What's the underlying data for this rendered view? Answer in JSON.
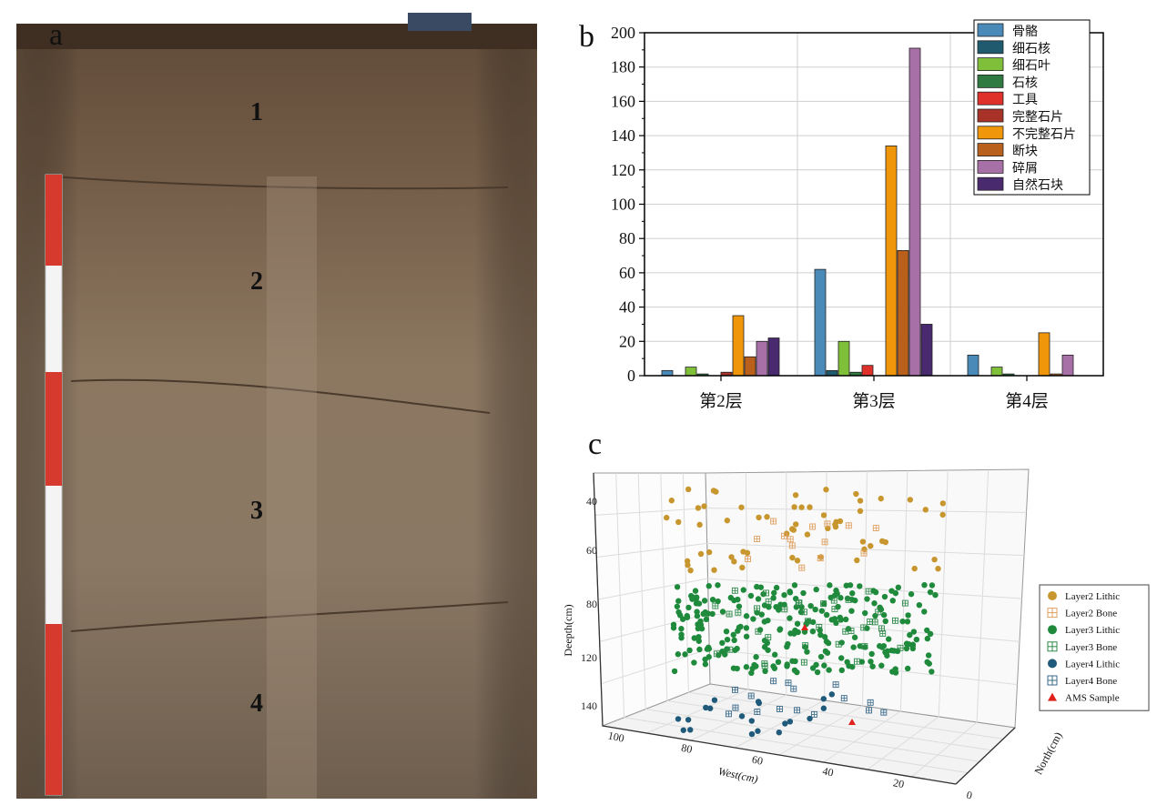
{
  "panels": {
    "a": "a",
    "b": "b",
    "c": "c"
  },
  "photo": {
    "layer_labels": [
      "1",
      "2",
      "3",
      "4"
    ],
    "colors": {
      "soil_top": "#6b5542",
      "soil_mid": "#8a7560",
      "soil_bottom": "#7c6a58",
      "pole_red": "#d63a2f",
      "pole_white": "#f4f4f4"
    }
  },
  "chart_data": [
    {
      "type": "bar",
      "categories": [
        "第2层",
        "第3层",
        "第4层"
      ],
      "ylim": [
        0,
        200
      ],
      "yticks": [
        0,
        20,
        40,
        60,
        80,
        100,
        120,
        140,
        160,
        180,
        200
      ],
      "legend_position": "top-right",
      "grid": true,
      "series": [
        {
          "name": "骨骼",
          "color": "#4a8ab8",
          "values": [
            3,
            62,
            12
          ]
        },
        {
          "name": "细石核",
          "color": "#1f5a6e",
          "values": [
            0,
            3,
            0
          ]
        },
        {
          "name": "细石叶",
          "color": "#7fbf3a",
          "values": [
            5,
            20,
            5
          ]
        },
        {
          "name": "石核",
          "color": "#2e7a40",
          "values": [
            1,
            2,
            1
          ]
        },
        {
          "name": "工具",
          "color": "#e0302a",
          "values": [
            0,
            6,
            0
          ]
        },
        {
          "name": "完整石片",
          "color": "#a83228",
          "values": [
            2,
            0,
            0
          ]
        },
        {
          "name": "不完整石片",
          "color": "#f0960a",
          "values": [
            35,
            134,
            25
          ]
        },
        {
          "name": "断块",
          "color": "#b8601c",
          "values": [
            11,
            73,
            1
          ]
        },
        {
          "name": "碎屑",
          "color": "#a771a8",
          "values": [
            20,
            191,
            12
          ]
        },
        {
          "name": "自然石块",
          "color": "#4a2a6e",
          "values": [
            22,
            30,
            0
          ]
        }
      ]
    },
    {
      "type": "scatter",
      "xlabel": "West(cm)",
      "ylabel": "Deepth(cm)",
      "zlabel": "North(cm)",
      "xticks": [
        100,
        80,
        60,
        40,
        20,
        0
      ],
      "yticks": [
        40,
        60,
        80,
        120,
        140
      ],
      "legend_position": "right",
      "series": [
        {
          "name": "Layer2 Lithic",
          "color": "#c8962e",
          "marker": "circle"
        },
        {
          "name": "Layer2 Bone",
          "color": "#e0a060",
          "marker": "square-plus"
        },
        {
          "name": "Layer3 Lithic",
          "color": "#1f8a3c",
          "marker": "circle"
        },
        {
          "name": "Layer3 Bone",
          "color": "#2e8a4a",
          "marker": "square-plus"
        },
        {
          "name": "Layer4 Lithic",
          "color": "#1f5a7a",
          "marker": "circle"
        },
        {
          "name": "Layer4 Bone",
          "color": "#3a6a8a",
          "marker": "square-plus"
        },
        {
          "name": "AMS Sample",
          "color": "#e0201a",
          "marker": "triangle"
        }
      ]
    }
  ]
}
